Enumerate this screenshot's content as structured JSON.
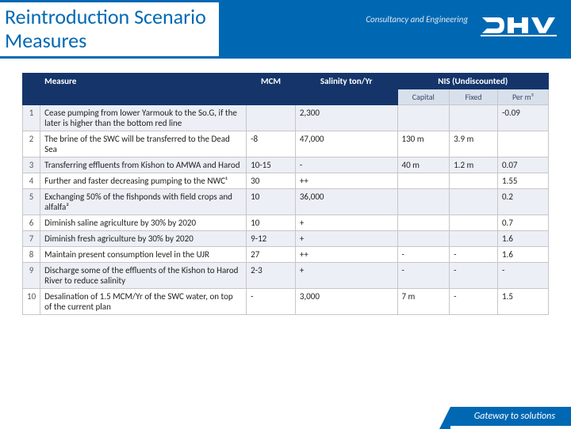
{
  "header": {
    "title_line1": "Reintroduction Scenario",
    "title_line2": "Measures",
    "tagline": "Consultancy and Engineering",
    "brand_color": "#0068b3",
    "header_dark": "#15356a"
  },
  "footer": {
    "text": "Gateway to solutions"
  },
  "table": {
    "columns": {
      "num": "",
      "measure": "Measure",
      "mcm": "MCM",
      "salinity": "Salinity ton/Yr",
      "nis": "NIS (Undiscounted)"
    },
    "sub_columns": {
      "capital": "Capital",
      "fixed": "Fixed",
      "perm3": "Per m³"
    },
    "rows": [
      {
        "n": "1",
        "measure": "Cease pumping from lower Yarmouk to the So.G, if the later is higher than the bottom red line",
        "mcm": "",
        "sal": "2,300",
        "cap": "",
        "fix": "",
        "pm": "-0.09"
      },
      {
        "n": "2",
        "measure": "The brine of the SWC will be transferred to the Dead Sea",
        "mcm": "-8",
        "sal": "47,000",
        "cap": "130 m",
        "fix": "3.9 m",
        "pm": ""
      },
      {
        "n": "3",
        "measure": "Transferring effluents from Kishon to AMWA and Harod",
        "mcm": "10-15",
        "sal": "-",
        "cap": "40 m",
        "fix": "1.2 m",
        "pm": "0.07"
      },
      {
        "n": "4",
        "measure": "Further and faster decreasing pumping to the NWC¹",
        "mcm": "30",
        "sal": "++",
        "cap": "",
        "fix": "",
        "pm": "1.55"
      },
      {
        "n": "5",
        "measure": "Exchanging 50% of the fishponds with field crops and alfalfa²",
        "mcm": "10",
        "sal": "36,000",
        "cap": "",
        "fix": "",
        "pm": "0.2"
      },
      {
        "n": "6",
        "measure": "Diminish saline agriculture by 30% by 2020",
        "mcm": "10",
        "sal": "+",
        "cap": "",
        "fix": "",
        "pm": "0.7"
      },
      {
        "n": "7",
        "measure": "Diminish fresh agriculture by 30% by 2020",
        "mcm": "9-12",
        "sal": "+",
        "cap": "",
        "fix": "",
        "pm": "1.6"
      },
      {
        "n": "8",
        "measure": "Maintain present consumption level in the UJR",
        "mcm": "27",
        "sal": "++",
        "cap": "-",
        "fix": "-",
        "pm": "1.6"
      },
      {
        "n": "9",
        "measure": "Discharge some of the effluents of the Kishon to Harod River to reduce salinity",
        "mcm": "2-3",
        "sal": "+",
        "cap": "-",
        "fix": "-",
        "pm": "-"
      },
      {
        "n": "10",
        "measure": "Desalination of 1.5 MCM/Yr of the SWC water, on top of the current plan",
        "mcm": "-",
        "sal": "3,000",
        "cap": "7 m",
        "fix": "-",
        "pm": "1.5"
      }
    ]
  }
}
